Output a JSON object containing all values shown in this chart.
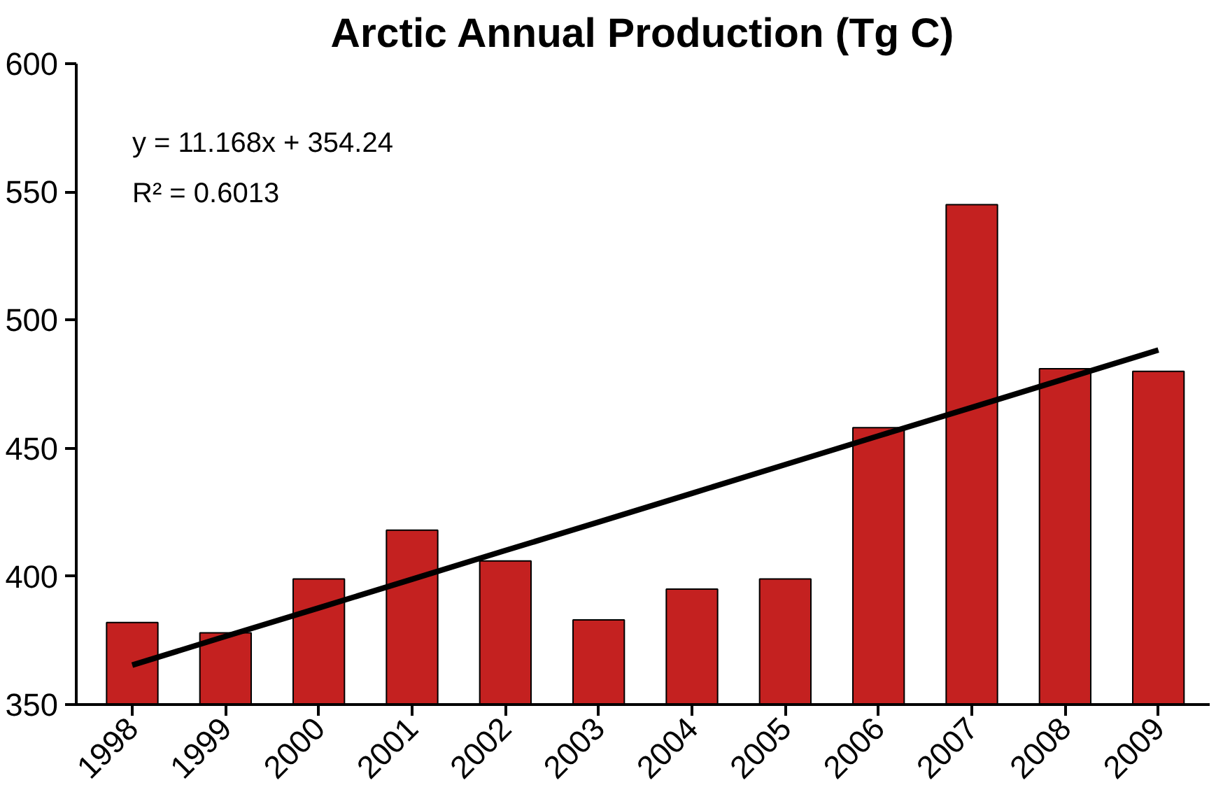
{
  "chart_data": {
    "type": "bar",
    "title": "Arctic Annual Production (Tg C)",
    "categories": [
      "1998",
      "1999",
      "2000",
      "2001",
      "2002",
      "2003",
      "2004",
      "2005",
      "2006",
      "2007",
      "2008",
      "2009"
    ],
    "series": [
      {
        "color": "#c42120",
        "values": [
          382,
          378,
          399,
          418,
          406,
          383,
          395,
          399,
          458,
          545,
          481,
          480
        ]
      },
      {
        "type": "line",
        "color": "#000000",
        "values": [
          365.4,
          376.6,
          387.7,
          398.9,
          410.1,
          421.2,
          432.4,
          443.6,
          454.8,
          465.9,
          477.1,
          488.3
        ]
      }
    ],
    "ylim": [
      350,
      600
    ],
    "yticks": [
      350,
      400,
      450,
      500,
      550,
      600
    ],
    "grid": false,
    "annotations": [
      "y = 11.168x + 354.24",
      "R² = 0.6013"
    ]
  }
}
